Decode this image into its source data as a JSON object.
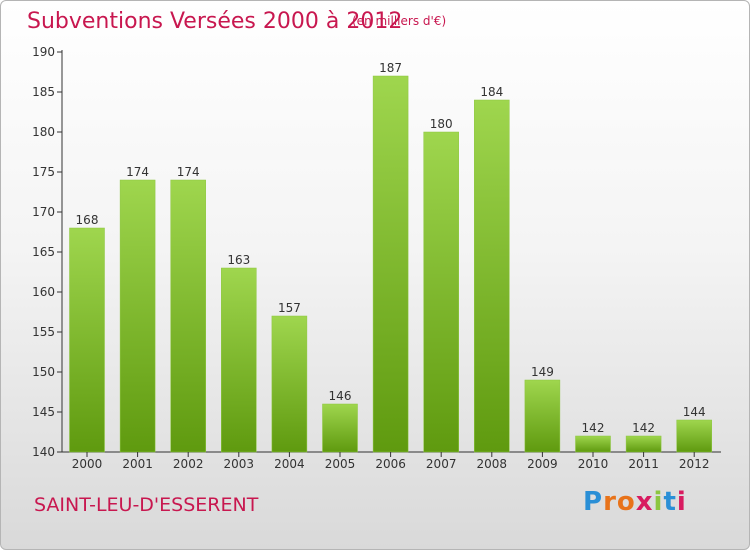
{
  "header": {
    "title": "Subventions Versées 2000 à 2012",
    "unit_note": "(en milliers d'€)"
  },
  "footer": {
    "town": "SAINT-LEU-D'ESSERENT",
    "brand": "Proxiti"
  },
  "colors": {
    "accent": "#c8174f",
    "bar_top": "#9fd64e",
    "bar_bottom": "#5f9a0f"
  },
  "chart_data": {
    "type": "bar",
    "categories": [
      "2000",
      "2001",
      "2002",
      "2003",
      "2004",
      "2005",
      "2006",
      "2007",
      "2008",
      "2009",
      "2010",
      "2011",
      "2012"
    ],
    "values": [
      168,
      174,
      174,
      163,
      157,
      146,
      187,
      180,
      184,
      149,
      142,
      142,
      144
    ],
    "ylim": [
      140,
      190
    ],
    "yticks": [
      140,
      145,
      150,
      155,
      160,
      165,
      170,
      175,
      180,
      185,
      190
    ],
    "grid": false,
    "data_labels": true
  }
}
